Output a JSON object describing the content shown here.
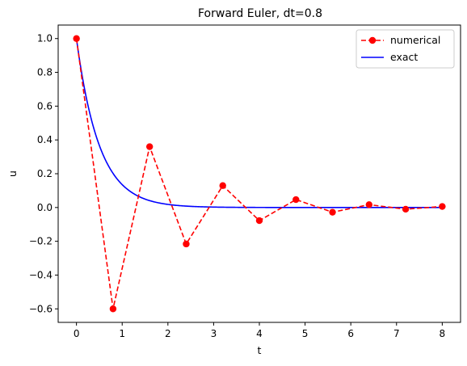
{
  "chart_data": {
    "type": "line",
    "title": "Forward Euler, dt=0.8",
    "xlabel": "t",
    "ylabel": "u",
    "xlim": [
      -0.4,
      8.4
    ],
    "ylim": [
      -0.68,
      1.08
    ],
    "xticks": [
      0,
      1,
      2,
      3,
      4,
      5,
      6,
      7,
      8
    ],
    "xtick_labels": [
      "0",
      "1",
      "2",
      "3",
      "4",
      "5",
      "6",
      "7",
      "8"
    ],
    "yticks": [
      -0.6,
      -0.4,
      -0.2,
      0.0,
      0.2,
      0.4,
      0.6,
      0.8,
      1.0
    ],
    "ytick_labels": [
      "−0.6",
      "−0.4",
      "−0.2",
      "0.0",
      "0.2",
      "0.4",
      "0.6",
      "0.8",
      "1.0"
    ],
    "grid": false,
    "legend": {
      "placement": "top-right"
    },
    "series": [
      {
        "name": "numerical",
        "style": "dashed-with-markers",
        "color": "#ff0000",
        "x": [
          0,
          0.8,
          1.6,
          2.4,
          3.2,
          4.0,
          4.8,
          5.6,
          6.4,
          7.2,
          8.0
        ],
        "y": [
          1.0,
          -0.6,
          0.36,
          -0.216,
          0.1296,
          -0.0778,
          0.0467,
          -0.028,
          0.0168,
          -0.0101,
          0.006
        ]
      },
      {
        "name": "exact",
        "style": "solid",
        "color": "#0000ff",
        "function": "exp(-2t)",
        "x_range": [
          0,
          8
        ]
      }
    ]
  }
}
